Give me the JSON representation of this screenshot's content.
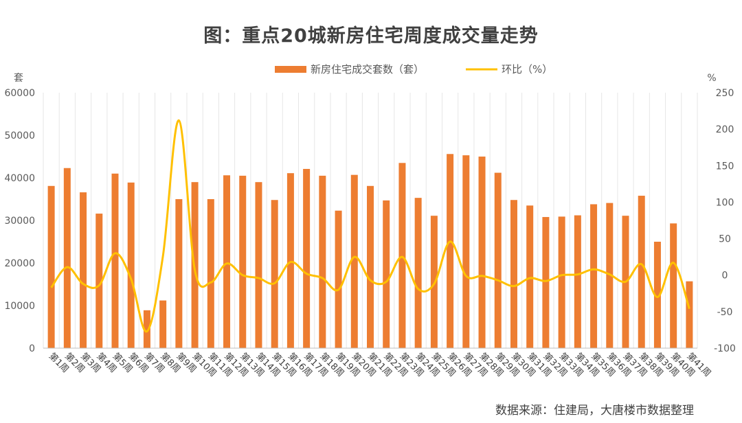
{
  "chart_data": {
    "type": "bar+line",
    "title": "图：重点20城新房住宅周度成交量走势",
    "y_left_unit": "套",
    "y_right_unit": "%",
    "y_left_range": [
      0,
      60000
    ],
    "y_left_ticks": [
      "0",
      "10000",
      "20000",
      "30000",
      "40000",
      "50000",
      "60000"
    ],
    "y_right_range": [
      -100,
      250
    ],
    "y_right_ticks": [
      "-100",
      "-50",
      "0",
      "50",
      "100",
      "150",
      "200",
      "250"
    ],
    "categories": [
      "第1周",
      "第2周",
      "第3周",
      "第4周",
      "第5周",
      "第6周",
      "第7周",
      "第8周",
      "第9周",
      "第10周",
      "第11周",
      "第12周",
      "第13周",
      "第14周",
      "第15周",
      "第16周",
      "第17周",
      "第18周",
      "第19周",
      "第20周",
      "第21周",
      "第22周",
      "第23周",
      "第24周",
      "第25周",
      "第26周",
      "第27周",
      "第28周",
      "第29周",
      "第30周",
      "第31周",
      "第32周",
      "第33周",
      "第34周",
      "第35周",
      "第36周",
      "第37周",
      "第38周",
      "第39周",
      "第40周",
      "第41周"
    ],
    "series": [
      {
        "name": "新房住宅成交套数（套）",
        "type": "bar",
        "axis": "left",
        "color": "#ED7D31",
        "values": [
          38100,
          42300,
          36600,
          31600,
          41000,
          38900,
          8900,
          11200,
          35000,
          39000,
          35000,
          40600,
          40500,
          39000,
          34800,
          41100,
          42100,
          40500,
          32300,
          40700,
          38100,
          34700,
          43500,
          35300,
          31100,
          45600,
          45300,
          45000,
          41200,
          34800,
          33500,
          30800,
          30900,
          31200,
          33800,
          34100,
          31100,
          35800,
          25000,
          29300,
          15700
        ]
      },
      {
        "name": "环比（%）",
        "type": "line",
        "axis": "right",
        "color": "#FFC000",
        "values": [
          -17,
          11,
          -12,
          -14,
          30,
          -5,
          -77,
          26,
          212,
          7,
          -10,
          16,
          0,
          -4,
          -11,
          18,
          2,
          -4,
          -20,
          25,
          -7,
          -9,
          25,
          -19,
          -12,
          46,
          -1,
          -1,
          -7,
          -15,
          -4,
          -8,
          0,
          1,
          8,
          1,
          -9,
          15,
          -30,
          17,
          -46
        ]
      }
    ],
    "legend_position": "top-center"
  },
  "source_text": "数据来源：住建局，大唐楼市数据整理"
}
